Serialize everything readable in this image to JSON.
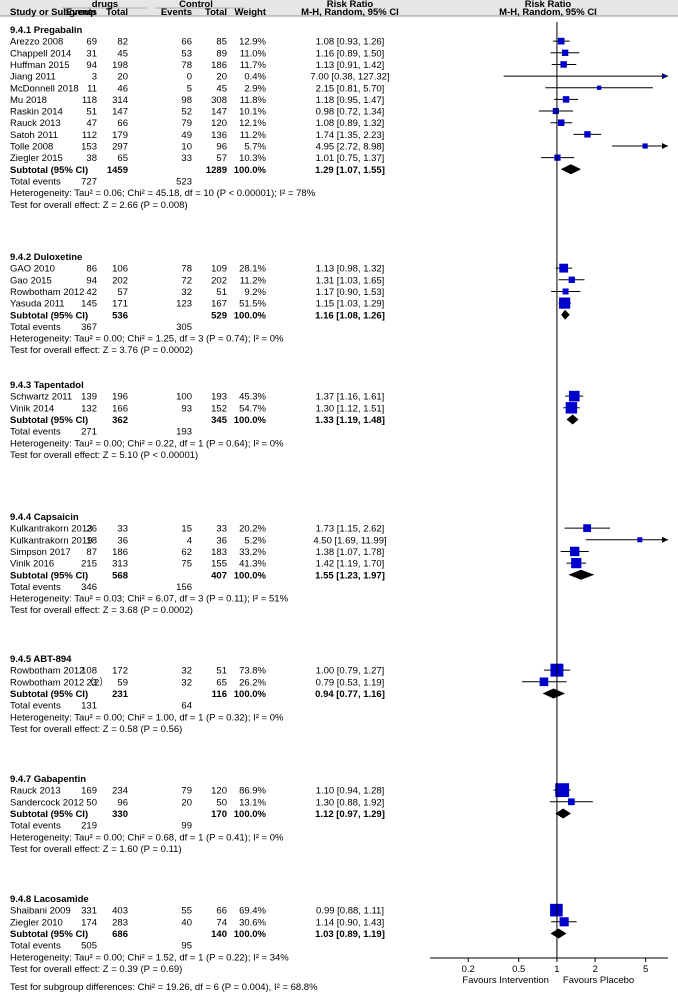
{
  "chart_data": {
    "type": "forest",
    "header": {
      "group1": "drugs",
      "group2": "Control",
      "rr_title": "Risk Ratio",
      "study_col": "Study or Subgroup",
      "events": "Events",
      "total": "Total",
      "weight": "Weight",
      "method": "M-H, Random, 95% CI"
    },
    "axis": {
      "type": "log",
      "range": [
        0.1,
        7.5
      ],
      "ticks": [
        0.2,
        0.5,
        1,
        2,
        5
      ],
      "tick_labels": [
        "0.2",
        "0.5",
        "1",
        "2",
        "5"
      ],
      "left_label": "Favours Intervention",
      "right_label": "Favours Placebo"
    },
    "subgroups": [
      {
        "name": "9.4.1 Pregabalin",
        "studies": [
          {
            "study": "Arezzo 2008",
            "e1": "69",
            "n1": "82",
            "e2": "66",
            "n2": "85",
            "weight": "12.9%",
            "ci_text": "1.08 [0.93, 1.26]",
            "rr": 1.08,
            "lo": 0.93,
            "hi": 1.26
          },
          {
            "study": "Chappell 2014",
            "e1": "31",
            "n1": "45",
            "e2": "53",
            "n2": "89",
            "weight": "11.0%",
            "ci_text": "1.16 [0.89, 1.50]",
            "rr": 1.16,
            "lo": 0.89,
            "hi": 1.5
          },
          {
            "study": "Huffman 2015",
            "e1": "94",
            "n1": "198",
            "e2": "78",
            "n2": "186",
            "weight": "11.7%",
            "ci_text": "1.13 [0.91, 1.42]",
            "rr": 1.13,
            "lo": 0.91,
            "hi": 1.42
          },
          {
            "study": "Jiang 2011",
            "e1": "3",
            "n1": "20",
            "e2": "0",
            "n2": "20",
            "weight": "0.4%",
            "ci_text": "7.00 [0.38, 127.32]",
            "rr": 7.0,
            "lo": 0.38,
            "hi": 127.32
          },
          {
            "study": "McDonnell 2018",
            "e1": "11",
            "n1": "46",
            "e2": "5",
            "n2": "45",
            "weight": "2.9%",
            "ci_text": "2.15 [0.81, 5.70]",
            "rr": 2.15,
            "lo": 0.81,
            "hi": 5.7
          },
          {
            "study": "Mu 2018",
            "e1": "118",
            "n1": "314",
            "e2": "98",
            "n2": "308",
            "weight": "11.8%",
            "ci_text": "1.18 [0.95, 1.47]",
            "rr": 1.18,
            "lo": 0.95,
            "hi": 1.47
          },
          {
            "study": "Raskin 2014",
            "e1": "51",
            "n1": "147",
            "e2": "52",
            "n2": "147",
            "weight": "10.1%",
            "ci_text": "0.98 [0.72, 1.34]",
            "rr": 0.98,
            "lo": 0.72,
            "hi": 1.34
          },
          {
            "study": "Rauck 2013",
            "e1": "47",
            "n1": "66",
            "e2": "79",
            "n2": "120",
            "weight": "12.1%",
            "ci_text": "1.08 [0.89, 1.32]",
            "rr": 1.08,
            "lo": 0.89,
            "hi": 1.32
          },
          {
            "study": "Satoh 2011",
            "e1": "112",
            "n1": "179",
            "e2": "49",
            "n2": "136",
            "weight": "11.2%",
            "ci_text": "1.74 [1.35, 2.23]",
            "rr": 1.74,
            "lo": 1.35,
            "hi": 2.23
          },
          {
            "study": "Tolle 2008",
            "e1": "153",
            "n1": "297",
            "e2": "10",
            "n2": "96",
            "weight": "5.7%",
            "ci_text": "4.95 [2.72, 8.98]",
            "rr": 4.95,
            "lo": 2.72,
            "hi": 8.98
          },
          {
            "study": "Ziegler 2015",
            "e1": "38",
            "n1": "65",
            "e2": "33",
            "n2": "57",
            "weight": "10.3%",
            "ci_text": "1.01 [0.75, 1.37]",
            "rr": 1.01,
            "lo": 0.75,
            "hi": 1.37
          }
        ],
        "subtotal": {
          "label": "Subtotal (95% CI)",
          "n1": "1459",
          "n2": "1289",
          "weight": "100.0%",
          "ci_text": "1.29 [1.07, 1.55]",
          "rr": 1.29,
          "lo": 1.07,
          "hi": 1.55
        },
        "total_events": {
          "label": "Total events",
          "e1": "727",
          "e2": "523"
        },
        "heterogeneity": "Heterogeneity: Tau² = 0.06; Chi² = 45.18, df = 10 (P < 0.00001); I² = 78%",
        "overall": "Test for overall effect: Z = 2.66 (P = 0.008)"
      },
      {
        "name": "9.4.2 Duloxetine",
        "studies": [
          {
            "study": "GAO 2010",
            "e1": "86",
            "n1": "106",
            "e2": "78",
            "n2": "109",
            "weight": "28.1%",
            "ci_text": "1.13 [0.98, 1.32]",
            "rr": 1.13,
            "lo": 0.98,
            "hi": 1.32
          },
          {
            "study": "Gao 2015",
            "e1": "94",
            "n1": "202",
            "e2": "72",
            "n2": "202",
            "weight": "11.2%",
            "ci_text": "1.31 [1.03, 1.65]",
            "rr": 1.31,
            "lo": 1.03,
            "hi": 1.65
          },
          {
            "study": "Rowbotham 2012",
            "e1": "42",
            "n1": "57",
            "e2": "32",
            "n2": "51",
            "weight": "9.2%",
            "ci_text": "1.17 [0.90, 1.53]",
            "rr": 1.17,
            "lo": 0.9,
            "hi": 1.53
          },
          {
            "study": "Yasuda 2011",
            "e1": "145",
            "n1": "171",
            "e2": "123",
            "n2": "167",
            "weight": "51.5%",
            "ci_text": "1.15 [1.03, 1.29]",
            "rr": 1.15,
            "lo": 1.03,
            "hi": 1.29
          }
        ],
        "subtotal": {
          "label": "Subtotal (95% CI)",
          "n1": "536",
          "n2": "529",
          "weight": "100.0%",
          "ci_text": "1.16 [1.08, 1.26]",
          "rr": 1.16,
          "lo": 1.08,
          "hi": 1.26
        },
        "total_events": {
          "label": "Total events",
          "e1": "367",
          "e2": "305"
        },
        "heterogeneity": "Heterogeneity: Tau² = 0.00; Chi² = 1.25, df = 3 (P = 0.74); I² = 0%",
        "overall": "Test for overall effect: Z = 3.76 (P = 0.0002)"
      },
      {
        "name": "9.4.3 Tapentadol",
        "studies": [
          {
            "study": "Schwartz 2011",
            "e1": "139",
            "n1": "196",
            "e2": "100",
            "n2": "193",
            "weight": "45.3%",
            "ci_text": "1.37 [1.16, 1.61]",
            "rr": 1.37,
            "lo": 1.16,
            "hi": 1.61
          },
          {
            "study": "Vinik 2014",
            "e1": "132",
            "n1": "166",
            "e2": "93",
            "n2": "152",
            "weight": "54.7%",
            "ci_text": "1.30 [1.12, 1.51]",
            "rr": 1.3,
            "lo": 1.12,
            "hi": 1.51
          }
        ],
        "subtotal": {
          "label": "Subtotal (95% CI)",
          "n1": "362",
          "n2": "345",
          "weight": "100.0%",
          "ci_text": "1.33 [1.19, 1.48]",
          "rr": 1.33,
          "lo": 1.19,
          "hi": 1.48
        },
        "total_events": {
          "label": "Total events",
          "e1": "271",
          "e2": "193"
        },
        "heterogeneity": "Heterogeneity: Tau² = 0.00; Chi² = 0.22, df = 1 (P = 0.64); I² = 0%",
        "overall": "Test for overall effect: Z = 5.10 (P < 0.00001)"
      },
      {
        "name": "9.4.4 Capsaicin",
        "studies": [
          {
            "study": "Kulkantrakorn 2013",
            "e1": "26",
            "n1": "33",
            "e2": "15",
            "n2": "33",
            "weight": "20.2%",
            "ci_text": "1.73 [1.15, 2.62]",
            "rr": 1.73,
            "lo": 1.15,
            "hi": 2.62
          },
          {
            "study": "Kulkantrakorn 2019",
            "e1": "18",
            "n1": "36",
            "e2": "4",
            "n2": "36",
            "weight": "5.2%",
            "ci_text": "4.50 [1.69, 11.99]",
            "rr": 4.5,
            "lo": 1.69,
            "hi": 11.99
          },
          {
            "study": "Simpson 2017",
            "e1": "87",
            "n1": "186",
            "e2": "62",
            "n2": "183",
            "weight": "33.2%",
            "ci_text": "1.38 [1.07, 1.78]",
            "rr": 1.38,
            "lo": 1.07,
            "hi": 1.78
          },
          {
            "study": "Vinik 2016",
            "e1": "215",
            "n1": "313",
            "e2": "75",
            "n2": "155",
            "weight": "41.3%",
            "ci_text": "1.42 [1.19, 1.70]",
            "rr": 1.42,
            "lo": 1.19,
            "hi": 1.7
          }
        ],
        "subtotal": {
          "label": "Subtotal (95% CI)",
          "n1": "568",
          "n2": "407",
          "weight": "100.0%",
          "ci_text": "1.55 [1.23, 1.97]",
          "rr": 1.55,
          "lo": 1.23,
          "hi": 1.97
        },
        "total_events": {
          "label": "Total events",
          "e1": "346",
          "e2": "156"
        },
        "heterogeneity": "Heterogeneity: Tau² = 0.03; Chi² = 6.07, df = 3 (P = 0.11); I² = 51%",
        "overall": "Test for overall effect: Z = 3.68 (P = 0.0002)"
      },
      {
        "name": "9.4.5 ABT-894",
        "studies": [
          {
            "study": "Rowbotham 2012",
            "e1": "108",
            "n1": "172",
            "e2": "32",
            "n2": "51",
            "weight": "73.8%",
            "ci_text": "1.00 [0.79, 1.27]",
            "rr": 1.0,
            "lo": 0.79,
            "hi": 1.27
          },
          {
            "study": "Rowbotham 2012（2）",
            "e1": "23",
            "n1": "59",
            "e2": "32",
            "n2": "65",
            "weight": "26.2%",
            "ci_text": "0.79 [0.53, 1.19]",
            "rr": 0.79,
            "lo": 0.53,
            "hi": 1.19
          }
        ],
        "subtotal": {
          "label": "Subtotal (95% CI)",
          "n1": "231",
          "n2": "116",
          "weight": "100.0%",
          "ci_text": "0.94 [0.77, 1.16]",
          "rr": 0.94,
          "lo": 0.77,
          "hi": 1.16
        },
        "total_events": {
          "label": "Total events",
          "e1": "131",
          "e2": "64"
        },
        "heterogeneity": "Heterogeneity: Tau² = 0.00; Chi² = 1.00, df = 1 (P = 0.32); I² = 0%",
        "overall": "Test for overall effect: Z = 0.58 (P = 0.56)"
      },
      {
        "name": "9.4.7 Gabapentin",
        "studies": [
          {
            "study": "Rauck 2013",
            "e1": "169",
            "n1": "234",
            "e2": "79",
            "n2": "120",
            "weight": "86.9%",
            "ci_text": "1.10 [0.94, 1.28]",
            "rr": 1.1,
            "lo": 0.94,
            "hi": 1.28
          },
          {
            "study": "Sandercock 2012",
            "e1": "50",
            "n1": "96",
            "e2": "20",
            "n2": "50",
            "weight": "13.1%",
            "ci_text": "1.30 [0.88, 1.92]",
            "rr": 1.3,
            "lo": 0.88,
            "hi": 1.92
          }
        ],
        "subtotal": {
          "label": "Subtotal (95% CI)",
          "n1": "330",
          "n2": "170",
          "weight": "100.0%",
          "ci_text": "1.12 [0.97, 1.29]",
          "rr": 1.12,
          "lo": 0.97,
          "hi": 1.29
        },
        "total_events": {
          "label": "Total events",
          "e1": "219",
          "e2": "99"
        },
        "heterogeneity": "Heterogeneity: Tau² = 0.00; Chi² = 0.68, df = 1 (P = 0.41); I² = 0%",
        "overall": "Test for overall effect: Z = 1.60 (P = 0.11)"
      },
      {
        "name": "9.4.8 Lacosamide",
        "studies": [
          {
            "study": "Shaibani 2009",
            "e1": "331",
            "n1": "403",
            "e2": "55",
            "n2": "66",
            "weight": "69.4%",
            "ci_text": "0.99 [0.88, 1.11]",
            "rr": 0.99,
            "lo": 0.88,
            "hi": 1.11
          },
          {
            "study": "Ziegler 2010",
            "e1": "174",
            "n1": "283",
            "e2": "40",
            "n2": "74",
            "weight": "30.6%",
            "ci_text": "1.14 [0.90, 1.43]",
            "rr": 1.14,
            "lo": 0.9,
            "hi": 1.43
          }
        ],
        "subtotal": {
          "label": "Subtotal (95% CI)",
          "n1": "686",
          "n2": "140",
          "weight": "100.0%",
          "ci_text": "1.03 [0.89, 1.19]",
          "rr": 1.03,
          "lo": 0.89,
          "hi": 1.19
        },
        "total_events": {
          "label": "Total events",
          "e1": "505",
          "e2": "95"
        },
        "heterogeneity": "Heterogeneity: Tau² = 0.00; Chi² = 1.52, df = 1 (P = 0.22); I² = 34%",
        "overall": "Test for overall effect: Z = 0.39 (P = 0.69)"
      }
    ],
    "footer": "Test for subgroup differences: Chi² = 19.26, df = 6 (P = 0.004), I² = 68.8%",
    "colors": {
      "study_marker": "#0000cc",
      "diamond": "#000000",
      "line": "#000000",
      "header_bg": "#e6e6e6",
      "header_rule": "#999999"
    }
  }
}
